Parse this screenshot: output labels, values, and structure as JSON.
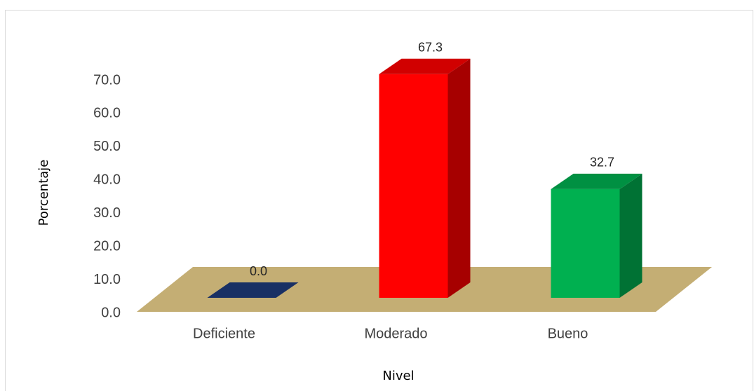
{
  "chart_data": {
    "type": "bar3d",
    "xlabel": "Nivel",
    "ylabel": "Porcentaje",
    "categories": [
      "Deficiente",
      "Moderado",
      "Bueno"
    ],
    "values": [
      0,
      67.3,
      32.7
    ],
    "value_labels": [
      "0.0",
      "67.3",
      "32.7"
    ],
    "colors": [
      "#1f3b7a",
      "#ff0000",
      "#00b050"
    ],
    "ylim": [
      0,
      70
    ],
    "yticks": [
      {
        "value": 0,
        "label": "0.0"
      },
      {
        "value": 10,
        "label": "10.0"
      },
      {
        "value": 20,
        "label": "20.0"
      },
      {
        "value": 30,
        "label": "30.0"
      },
      {
        "value": 40,
        "label": "40.0"
      },
      {
        "value": 50,
        "label": "50.0"
      },
      {
        "value": 60,
        "label": "60.0"
      },
      {
        "value": 70,
        "label": "70.0"
      }
    ],
    "grid": false
  }
}
